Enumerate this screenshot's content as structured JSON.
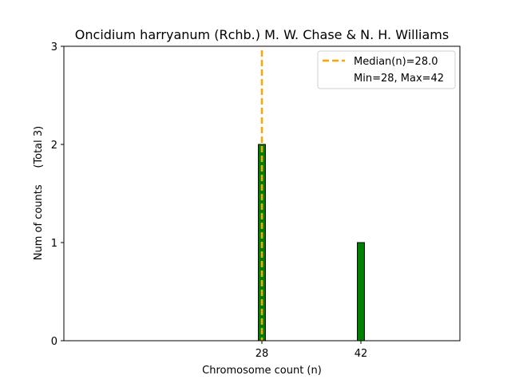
{
  "chart_data": {
    "type": "bar",
    "title": "Oncidium harryanum (Rchb.) M. W. Chase & N. H. Williams",
    "xlabel": "Chromosome count (n)",
    "ylabel": "Num of counts     (Total 3)",
    "xlim": [
      0,
      56
    ],
    "ylim": [
      0,
      3
    ],
    "xticks": [
      28,
      42
    ],
    "yticks": [
      0,
      1,
      2,
      3
    ],
    "bar_width": 1,
    "bars": [
      {
        "x": 28,
        "value": 2
      },
      {
        "x": 42,
        "value": 1
      }
    ],
    "median_line": {
      "x": 28.0,
      "label": "Median(n)=28.0"
    },
    "legend": {
      "position": "top-right",
      "entries": [
        "Median(n)=28.0",
        "Min=28, Max=42"
      ]
    },
    "colors": {
      "bar_fill": "#008000",
      "bar_edge": "#000000",
      "median": "#FFA500"
    },
    "grid": false
  }
}
